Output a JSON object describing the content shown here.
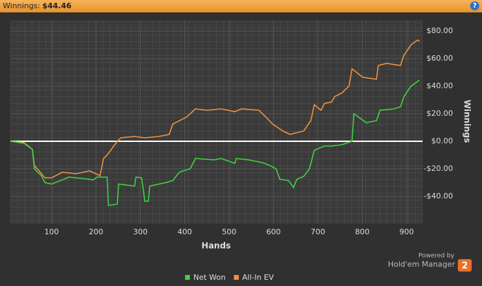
{
  "header": {
    "label": "Winnings:",
    "value": "$44.46",
    "help": "?"
  },
  "footer": {
    "powered": "Powered by",
    "brand": "Hold'em Manager",
    "version": "2"
  },
  "chart_data": {
    "type": "line",
    "xlabel": "Hands",
    "ylabel": "Winnings",
    "xlim": [
      7,
      936
    ],
    "xticks": [
      100,
      200,
      300,
      400,
      500,
      600,
      700,
      800,
      900
    ],
    "ylim": [
      -60,
      87.5
    ],
    "yticks": [
      {
        "value": -40,
        "label": "-$40.00"
      },
      {
        "value": -20,
        "label": "-$20.00"
      },
      {
        "value": 0,
        "label": "$0.00"
      },
      {
        "value": 20,
        "label": "$20.00"
      },
      {
        "value": 40,
        "label": "$40.00"
      },
      {
        "value": 60,
        "label": "$60.00"
      },
      {
        "value": 80,
        "label": "$80.00"
      }
    ],
    "grid": true,
    "legend": "bottom",
    "series": [
      {
        "name": "Net Won",
        "color": "#3fd23f",
        "x": [
          7,
          38,
          57,
          61,
          77,
          85,
          100,
          124,
          139,
          170,
          194,
          202,
          225,
          228,
          248,
          251,
          287,
          290,
          303,
          310,
          318,
          321,
          357,
          373,
          388,
          396,
          412,
          424,
          466,
          482,
          513,
          516,
          544,
          575,
          591,
          606,
          614,
          634,
          645,
          653,
          668,
          681,
          692,
          703,
          715,
          731,
          754,
          777,
          781,
          809,
          832,
          840,
          871,
          886,
          894,
          910,
          925,
          929
        ],
        "values": [
          0,
          -1.5,
          -6,
          -20,
          -25,
          -30,
          -31,
          -28,
          -26,
          -27,
          -28,
          -26,
          -26,
          -46.5,
          -45.5,
          -31,
          -32.5,
          -26,
          -26.5,
          -43.5,
          -43.5,
          -32.5,
          -30,
          -28.5,
          -22.5,
          -21.5,
          -20,
          -12.5,
          -13.5,
          -12.5,
          -16,
          -12.5,
          -13.5,
          -15.5,
          -17.5,
          -20,
          -27.5,
          -28.5,
          -33.5,
          -27.5,
          -25.5,
          -20,
          -6.5,
          -5,
          -3.5,
          -3.5,
          -2.5,
          0,
          20,
          13.5,
          15,
          22.5,
          23.5,
          25,
          32.5,
          40,
          43.5,
          44.46
        ]
      },
      {
        "name": "All-In EV",
        "color": "#f0913c",
        "x": [
          7,
          38,
          57,
          61,
          85,
          100,
          124,
          155,
          186,
          209,
          217,
          225,
          248,
          256,
          287,
          310,
          342,
          365,
          373,
          404,
          424,
          451,
          482,
          513,
          528,
          567,
          583,
          598,
          621,
          637,
          668,
          684,
          692,
          707,
          715,
          731,
          738,
          754,
          770,
          777,
          801,
          832,
          836,
          855,
          886,
          894,
          910,
          925,
          929
        ],
        "values": [
          0,
          -1,
          -6,
          -17.5,
          -26.5,
          -26.5,
          -22.5,
          -23.5,
          -21.5,
          -25,
          -12.5,
          -10,
          0,
          2.5,
          3.5,
          2.5,
          3.5,
          5,
          12.5,
          17.5,
          23.5,
          22.5,
          23.5,
          21.5,
          23.5,
          22.5,
          17.5,
          12.5,
          7.5,
          5,
          7.5,
          15,
          26.5,
          22.5,
          27.5,
          28.5,
          32.5,
          35,
          40,
          52.5,
          46.5,
          45,
          55,
          56.5,
          55,
          62.5,
          70,
          73.5,
          72.5
        ]
      }
    ]
  }
}
